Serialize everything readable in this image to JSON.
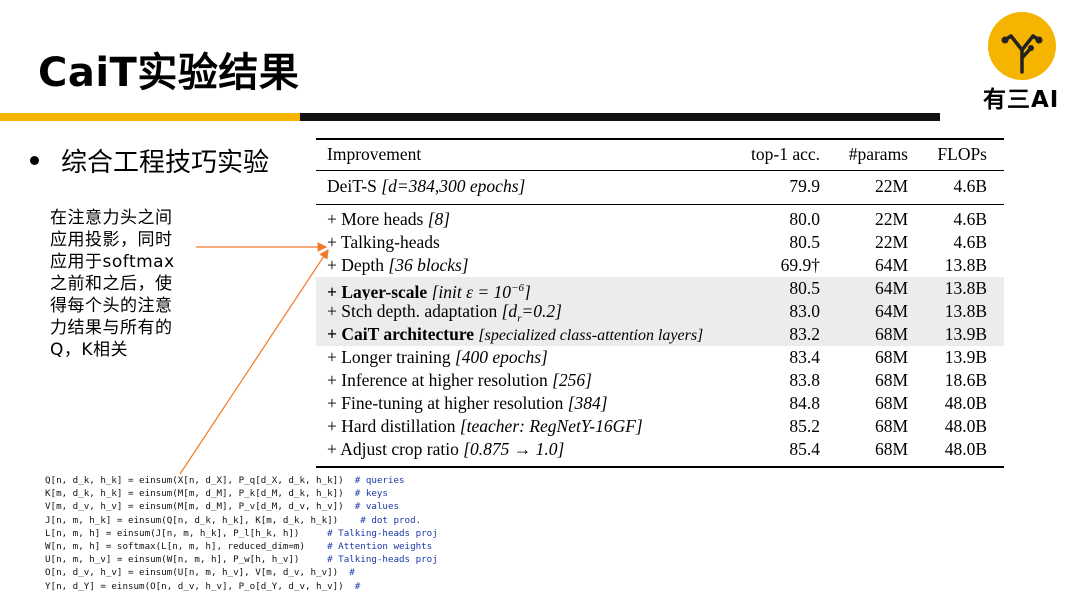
{
  "title": "CaiT实验结果",
  "logo": {
    "text": "有三AI"
  },
  "bullet": "综合工程技巧实验",
  "note": [
    "在注意力头之间",
    "应用投影，同时",
    "应用于softmax",
    "之前和之后，使",
    "得每个头的注意",
    "力结果与所有的",
    "Q，K相关"
  ],
  "table": {
    "headers": [
      "Improvement",
      "top-1 acc.",
      "#params",
      "FLOPs"
    ],
    "baseline": {
      "name": "DeiT-S",
      "detail": "[d=384,300 epochs]",
      "acc": "79.9",
      "params": "22M",
      "flops": "4.6B"
    },
    "rows": [
      {
        "name": "+ More heads",
        "detail": "[8]",
        "acc": "80.0",
        "params": "22M",
        "flops": "4.6B"
      },
      {
        "name": "+ Talking-heads",
        "detail": "",
        "acc": "80.5",
        "params": "22M",
        "flops": "4.6B"
      },
      {
        "name": "+ Depth",
        "detail": "[36 blocks]",
        "acc": "69.9†",
        "params": "64M",
        "flops": "13.8B"
      },
      {
        "name": "+ Layer-scale",
        "detail_pre": "[init ε = 10",
        "detail_sup": "−6",
        "detail_post": "]",
        "acc": "80.5",
        "params": "64M",
        "flops": "13.8B"
      },
      {
        "name": "+ Stch depth. adaptation",
        "detail_pre": "[d",
        "detail_sub": "r",
        "detail_post": "=0.2]",
        "acc": "83.0",
        "params": "64M",
        "flops": "13.8B"
      },
      {
        "name": "+ CaiT architecture",
        "detail": "[specialized class-attention layers]",
        "acc": "83.2",
        "params": "68M",
        "flops": "13.9B"
      },
      {
        "name": "+ Longer training",
        "detail": "[400 epochs]",
        "acc": "83.4",
        "params": "68M",
        "flops": "13.9B"
      },
      {
        "name": "+ Inference at higher resolution",
        "detail": "[256]",
        "acc": "83.8",
        "params": "68M",
        "flops": "18.6B"
      },
      {
        "name": "+ Fine-tuning at higher resolution",
        "detail": "[384]",
        "acc": "84.8",
        "params": "68M",
        "flops": "48.0B"
      },
      {
        "name": "+ Hard distillation",
        "detail": "[teacher: RegNetY-16GF]",
        "acc": "85.2",
        "params": "68M",
        "flops": "48.0B"
      },
      {
        "name": "+ Adjust crop ratio",
        "detail": "[0.875 → 1.0]",
        "acc": "85.4",
        "params": "68M",
        "flops": "48.0B"
      }
    ]
  },
  "code": [
    {
      "code": "Q[n, d_k, h_k] = einsum(X[n, d_X], P_q[d_X, d_k, h_k])  ",
      "comment": "# queries"
    },
    {
      "code": "K[m, d_k, h_k] = einsum(M[m, d_M], P_k[d_M, d_k, h_k])  ",
      "comment": "# keys"
    },
    {
      "code": "V[m, d_v, h_v] = einsum(M[m, d_M], P_v[d_M, d_v, h_v])  ",
      "comment": "# values"
    },
    {
      "code": "J[n, m, h_k] = einsum(Q[n, d_k, h_k], K[m, d_k, h_k])    ",
      "comment": "# dot prod."
    },
    {
      "code": "L[n, m, h] = einsum(J[n, m, h_k], P_l[h_k, h])     ",
      "comment": "# Talking-heads proj"
    },
    {
      "code": "W[n, m, h] = softmax(L[n, m, h], reduced_dim=m)    ",
      "comment": "# Attention weights"
    },
    {
      "code": "U[n, m, h_v] = einsum(W[n, m, h], P_w[h, h_v])     ",
      "comment": "# Talking-heads proj"
    },
    {
      "code": "O[n, d_v, h_v] = einsum(U[n, m, h_v], V[m, d_v, h_v])  ",
      "comment": "#"
    },
    {
      "code": "Y[n, d_Y] = einsum(O[n, d_v, h_v], P_o[d_Y, d_v, h_v])  ",
      "comment": "#"
    }
  ],
  "colors": {
    "accent": "#f5b400",
    "arrow": "#f07a2a",
    "shade": "#ececec",
    "code_comment": "#1a3aa8"
  }
}
